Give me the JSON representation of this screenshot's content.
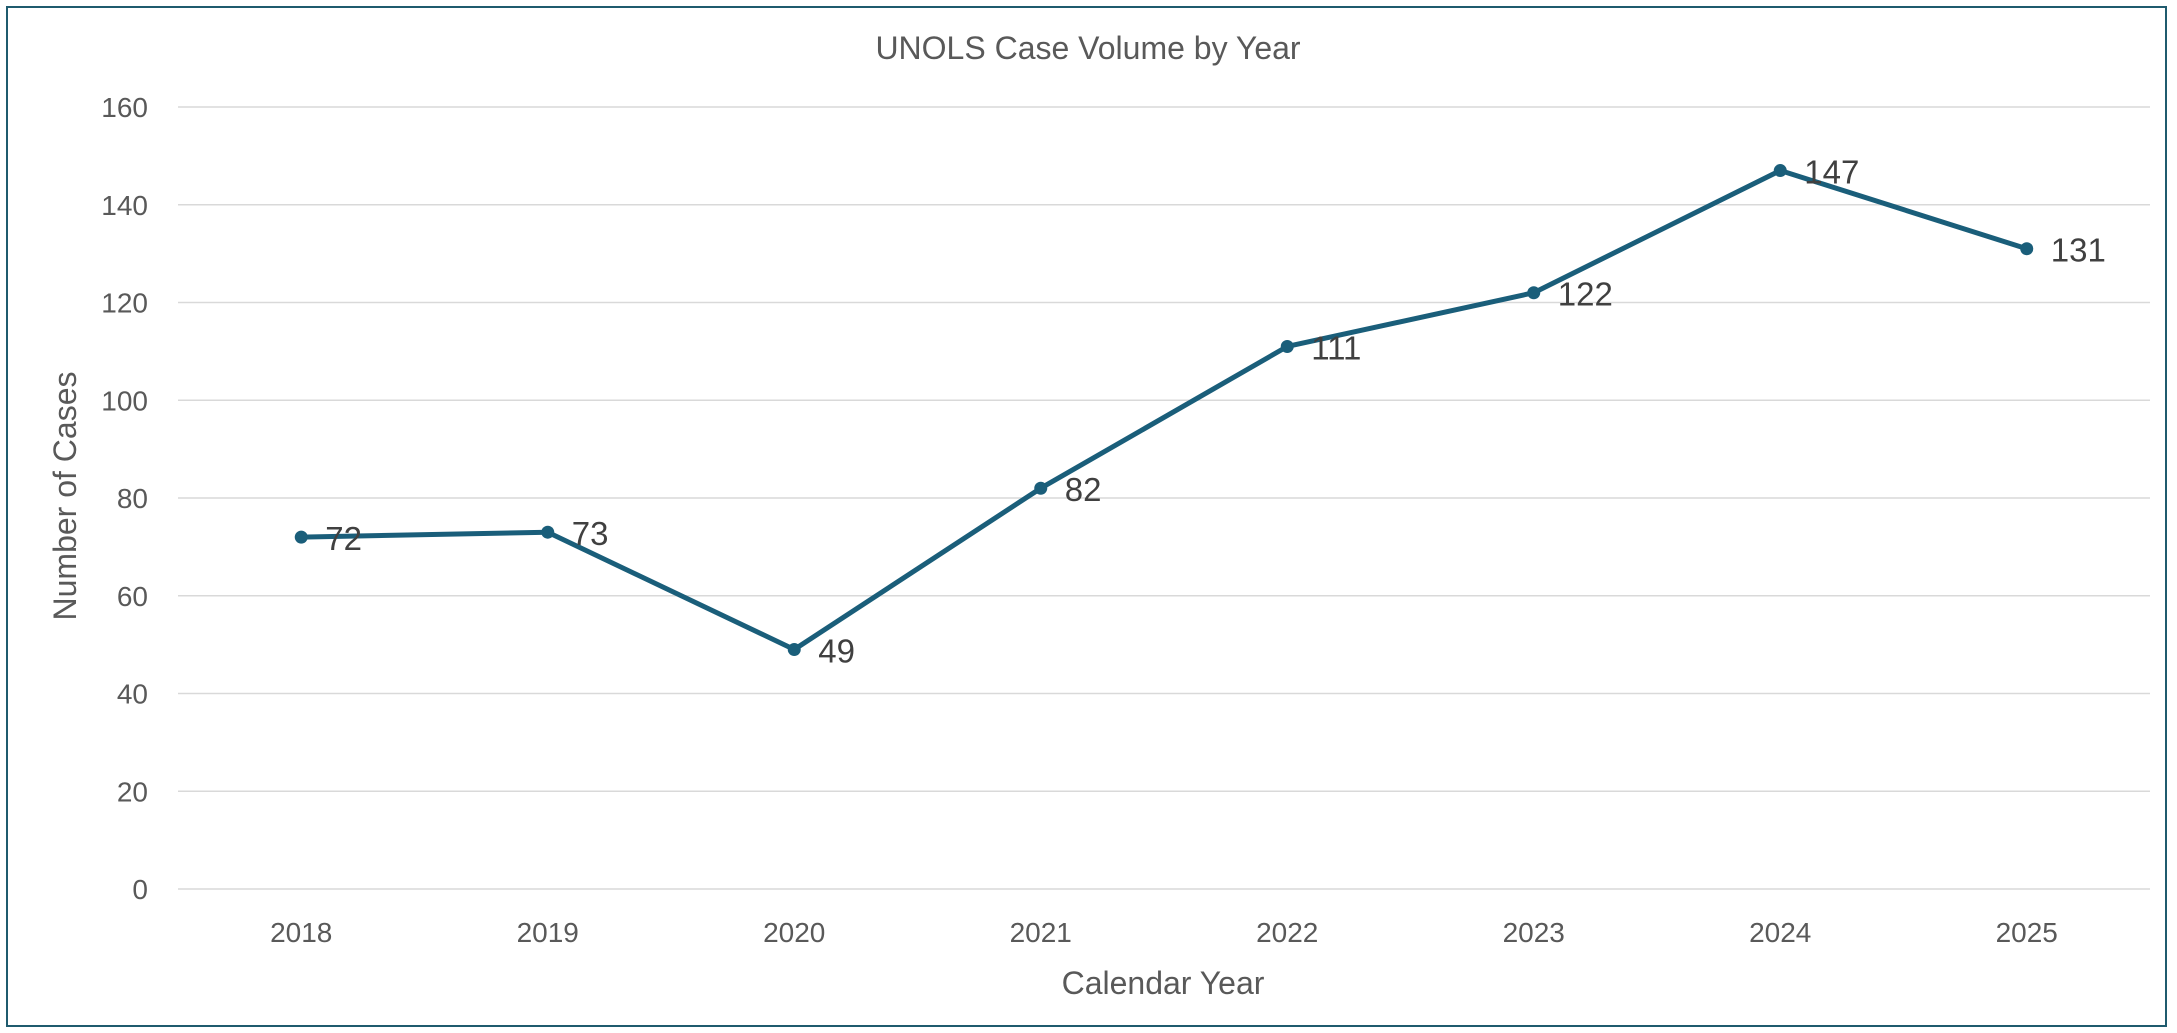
{
  "chart_data": {
    "type": "line",
    "title": "UNOLS Case Volume by Year",
    "xlabel": "Calendar Year",
    "ylabel": "Number of Cases",
    "categories": [
      "2018",
      "2019",
      "2020",
      "2021",
      "2022",
      "2023",
      "2024",
      "2025"
    ],
    "series": [
      {
        "values": [
          72,
          73,
          49,
          82,
          111,
          122,
          147,
          131
        ],
        "color": "#1a5e7a"
      }
    ],
    "ylim": [
      0,
      160
    ],
    "yticks": [
      0,
      20,
      40,
      60,
      80,
      100,
      120,
      140,
      160
    ],
    "grid": true,
    "data_labels": true,
    "frame_color": "#1f5b6e"
  }
}
